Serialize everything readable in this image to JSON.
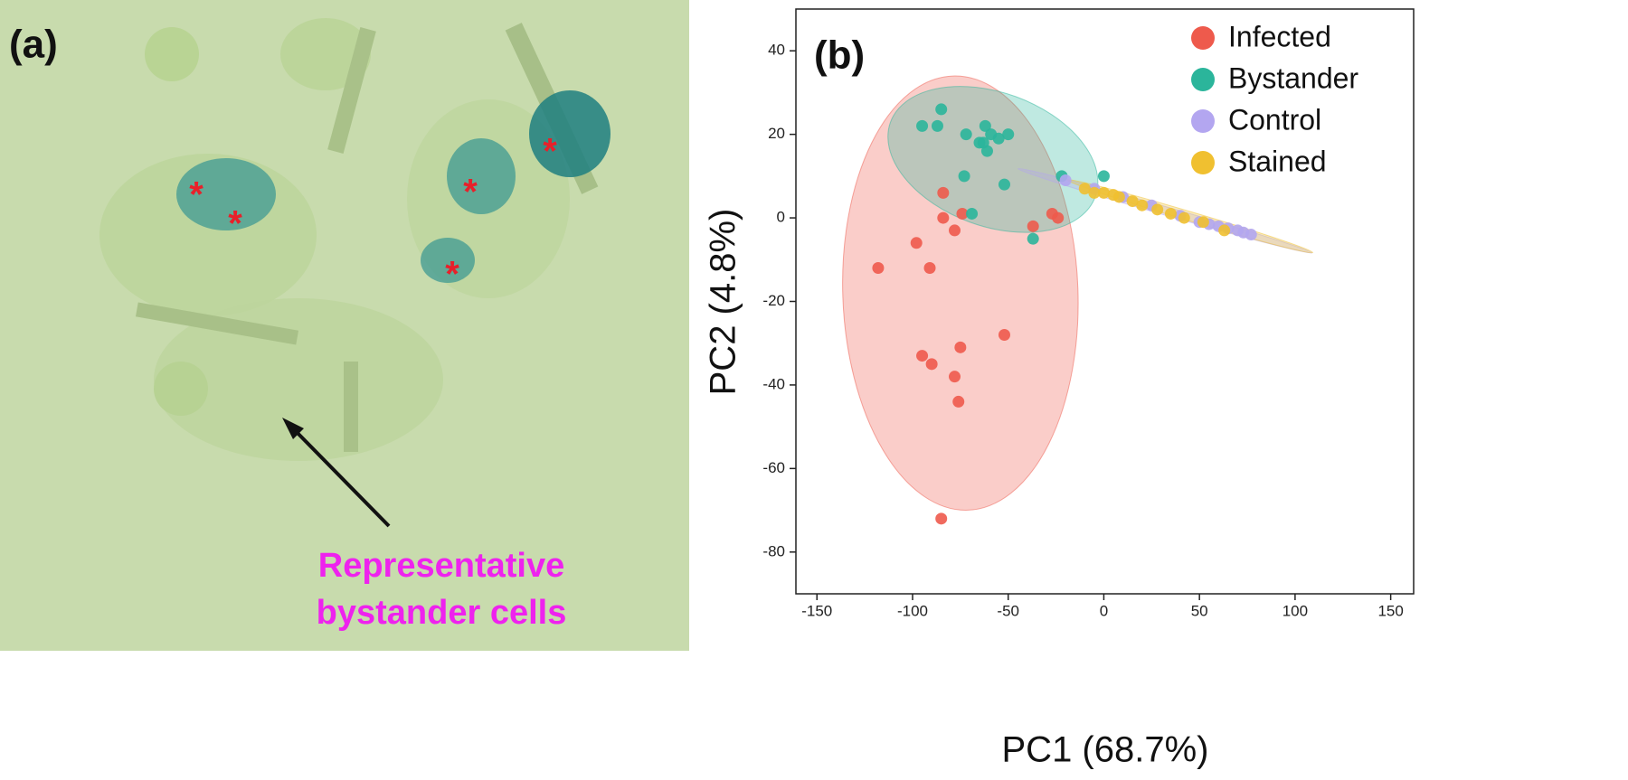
{
  "image_panel": {
    "label": "(a)",
    "asterisk": "*",
    "annotation": [
      "Representative",
      "bystander cells"
    ]
  },
  "chart_data": {
    "type": "scatter",
    "panel_label": "(b)",
    "xlabel": "PC1 (68.7%)",
    "ylabel": "PC2 (4.8%)",
    "xlim": [
      -161,
      162
    ],
    "ylim": [
      -90,
      50
    ],
    "xticks": [
      -150,
      -100,
      -50,
      0,
      50,
      100,
      150
    ],
    "yticks": [
      40,
      20,
      0,
      -20,
      -40,
      -60,
      -80
    ],
    "legend": "upper right",
    "series": [
      {
        "name": "Infected",
        "color": "#ee5a4c",
        "x": [
          -85,
          -118,
          -98,
          -91,
          -84,
          -78,
          -74,
          -84,
          -95,
          -90,
          -75,
          -78,
          -76,
          -52,
          -37,
          -27,
          -24
        ],
        "values": [
          -72,
          -12,
          -6,
          -12,
          0,
          -3,
          1,
          6,
          -33,
          -35,
          -31,
          -38,
          -44,
          -28,
          -2,
          1,
          0
        ],
        "ellipse": {
          "cx": -75,
          "cy": -18,
          "rx": 61.5,
          "ry": 52,
          "angle": -2
        }
      },
      {
        "name": "Bystander",
        "color": "#2bb59b",
        "x": [
          -85,
          -95,
          -87,
          -72,
          -62,
          -65,
          -59,
          -55,
          -50,
          -61,
          -63,
          -73,
          -52,
          -69,
          -37,
          -22,
          0
        ],
        "values": [
          26,
          22,
          22,
          20,
          22,
          18,
          20,
          19,
          20,
          16,
          18,
          10,
          8,
          1,
          -5,
          10,
          10
        ],
        "ellipse": {
          "cx": -58,
          "cy": 14,
          "rx": 57,
          "ry": 16,
          "angle": 20
        }
      },
      {
        "name": "Control",
        "color": "#b3a6f0",
        "x": [
          -20,
          -5,
          10,
          25,
          40,
          50,
          55,
          60,
          65,
          70,
          73,
          77
        ],
        "values": [
          9,
          7,
          5,
          3,
          0.5,
          -1,
          -1.5,
          -2,
          -2.5,
          -3,
          -3.5,
          -4
        ],
        "ellipse": {
          "cx": 32,
          "cy": 1.7,
          "rx": 80,
          "ry": 1,
          "angle": 16
        }
      },
      {
        "name": "Stained",
        "color": "#f0c030",
        "x": [
          -10,
          -5,
          0,
          5,
          8,
          15,
          20,
          28,
          35,
          42,
          52,
          63
        ],
        "values": [
          7,
          6,
          6,
          5.5,
          5,
          4,
          3,
          2,
          1,
          0,
          -1,
          -3
        ],
        "ellipse": {
          "cx": 45,
          "cy": 0.4,
          "rx": 67,
          "ry": 1.1,
          "angle": 16.5
        }
      }
    ]
  }
}
